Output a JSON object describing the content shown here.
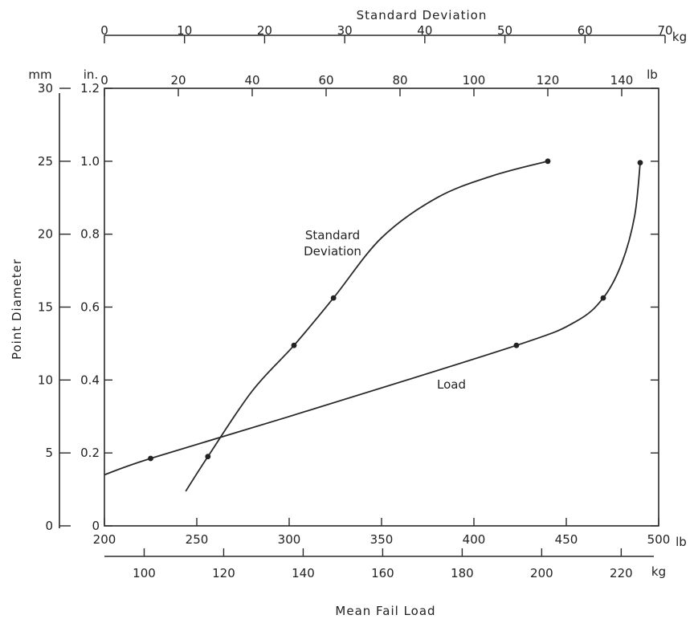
{
  "chart_data": {
    "type": "line",
    "title": "",
    "axes": {
      "top_kg": {
        "title": "Standard Deviation",
        "ticks": [
          "0",
          "10",
          "20",
          "30",
          "40",
          "50",
          "60",
          "70"
        ],
        "unit": "kg",
        "range": [
          0,
          70
        ]
      },
      "top_lb": {
        "ticks": [
          "0",
          "20",
          "40",
          "60",
          "80",
          "100",
          "120",
          "140"
        ],
        "unit": "lb",
        "range": [
          0,
          150
        ]
      },
      "bottom_lb": {
        "ticks": [
          "200",
          "250",
          "300",
          "350",
          "400",
          "450",
          "500"
        ],
        "unit": "lb",
        "range": [
          200,
          500
        ]
      },
      "bottom_kg": {
        "title": "Mean Fail Load",
        "ticks": [
          "100",
          "120",
          "140",
          "160",
          "180",
          "200",
          "220"
        ],
        "unit": "kg",
        "range": [
          90,
          227
        ]
      },
      "left_mm": {
        "title": "Point Diameter",
        "ticks": [
          "0",
          "5",
          "10",
          "15",
          "20",
          "25",
          "30"
        ],
        "unit": "mm",
        "range": [
          0,
          30
        ]
      },
      "left_in": {
        "ticks": [
          "0",
          "0.2",
          "0.4",
          "0.6",
          "0.8",
          "1.0",
          "1.2"
        ],
        "unit": "in.",
        "range": [
          0,
          1.2
        ]
      }
    },
    "series": [
      {
        "name": "Standard Deviation",
        "x_axis": "top_lb",
        "points": [
          [
            28,
            0.19
          ],
          [
            51.3,
            0.495
          ],
          [
            62,
            0.625
          ],
          [
            120,
            1.0
          ]
        ],
        "curve": [
          [
            22,
            0.095
          ],
          [
            28,
            0.19
          ],
          [
            40,
            0.37
          ],
          [
            51.3,
            0.495
          ],
          [
            62,
            0.625
          ],
          [
            75,
            0.79
          ],
          [
            90,
            0.9
          ],
          [
            105,
            0.96
          ],
          [
            120,
            1.0
          ]
        ]
      },
      {
        "name": "Load",
        "x_axis": "bottom_lb",
        "points": [
          [
            225,
            0.185
          ],
          [
            423,
            0.495
          ],
          [
            470,
            0.625
          ],
          [
            490,
            0.996
          ]
        ],
        "curve": [
          [
            200,
            0.14
          ],
          [
            225,
            0.185
          ],
          [
            300,
            0.3
          ],
          [
            423,
            0.495
          ],
          [
            455,
            0.56
          ],
          [
            470,
            0.625
          ],
          [
            480,
            0.72
          ],
          [
            487,
            0.85
          ],
          [
            490,
            0.996
          ]
        ]
      }
    ],
    "labels": {
      "sd_line1": "Standard",
      "sd_line2": "Deviation",
      "load": "Load"
    }
  }
}
